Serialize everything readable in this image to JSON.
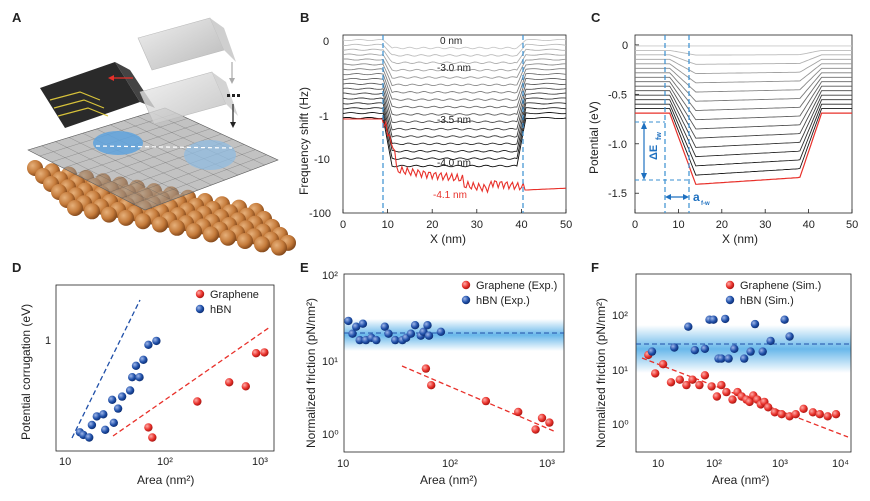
{
  "panel_labels": [
    "A",
    "B",
    "C",
    "D",
    "E",
    "F"
  ],
  "annotations": {
    "delta_e_main": "ΔE",
    "delta_e_sub": "fw",
    "a_main": "a",
    "a_sub": "f-w"
  },
  "colors": {
    "red": "#e8302a",
    "blue": "#1f4fa8",
    "cyan_dash": "#3a8fd0",
    "band": "#58b0e8"
  },
  "chart_data": [
    {
      "panel": "B",
      "type": "line",
      "xlabel": "X (nm)",
      "ylabel": "Frequency shift (Hz)",
      "xlim": [
        0,
        50
      ],
      "x_ticks": [
        "0",
        "10",
        "20",
        "30",
        "40",
        "50"
      ],
      "y_ticks": [
        "0",
        "-1",
        "-10",
        "-100"
      ],
      "curve_labels": [
        "0 nm",
        "-3.0 nm",
        "-3.5 nm",
        "-4.0 nm",
        "-4.1 nm"
      ],
      "vertical_lines_x": [
        9,
        41
      ]
    },
    {
      "panel": "C",
      "type": "line",
      "xlabel": "X (nm)",
      "ylabel": "Potential (eV)",
      "xlim": [
        0,
        50
      ],
      "ylim": [
        -1.7,
        0.1
      ],
      "x_ticks": [
        "0",
        "10",
        "20",
        "30",
        "40",
        "50"
      ],
      "y_ticks": [
        "0",
        "-0.5",
        "-1.0",
        "-1.5"
      ],
      "vertical_lines_x": [
        7,
        13
      ]
    },
    {
      "panel": "D",
      "type": "scatter",
      "xlabel": "Area (nm²)",
      "ylabel": "Potential corrugation (eV)",
      "x_ticks": [
        "10",
        "10²",
        "10³"
      ],
      "y_ticks": [
        "1"
      ],
      "series": [
        {
          "name": "Graphene",
          "x": [
            62,
            68,
            200,
            430,
            640,
            820,
            1000
          ],
          "y": [
            0.32,
            0.28,
            0.45,
            0.58,
            0.55,
            0.85,
            0.86
          ]
        },
        {
          "name": "hBN",
          "x": [
            12,
            13,
            15,
            16,
            18,
            21,
            22,
            26,
            27,
            30,
            33,
            40,
            42,
            46,
            50,
            55,
            62,
            75
          ],
          "y": [
            0.3,
            0.29,
            0.28,
            0.33,
            0.37,
            0.38,
            0.31,
            0.46,
            0.34,
            0.41,
            0.48,
            0.52,
            0.62,
            0.72,
            0.62,
            0.78,
            0.95,
            1.0
          ]
        }
      ]
    },
    {
      "panel": "E",
      "type": "scatter",
      "xlabel": "Area (nm²)",
      "ylabel": "Normalized friction (pN/nm²)",
      "x_ticks": [
        "10",
        "10²",
        "10³"
      ],
      "y_ticks": [
        "10⁰",
        "10¹",
        "10²"
      ],
      "series": [
        {
          "name": "Graphene (Exp.)",
          "x": [
            58,
            65,
            210,
            420,
            610,
            700,
            820
          ],
          "y": [
            6.6,
            4.1,
            2.6,
            1.9,
            1.15,
            1.6,
            1.4
          ]
        },
        {
          "name": "hBN (Exp.)",
          "x": [
            11,
            12,
            13,
            14,
            15,
            16,
            18,
            20,
            24,
            26,
            30,
            35,
            38,
            42,
            46,
            52,
            55,
            60,
            62,
            80
          ],
          "y": [
            26,
            18,
            22,
            15,
            24,
            15,
            16,
            15,
            22,
            18,
            15,
            15,
            16,
            18,
            23,
            17,
            19,
            23,
            17,
            19
          ]
        }
      ],
      "band_center": 18
    },
    {
      "panel": "F",
      "type": "scatter",
      "xlabel": "Area (nm²)",
      "ylabel": "Normalized friction (pN/nm²)",
      "x_ticks": [
        "10",
        "10²",
        "10³",
        "10⁴"
      ],
      "y_ticks": [
        "10⁰",
        "10¹",
        "10²"
      ],
      "series": [
        {
          "name": "Graphene (Sim.)",
          "x": [
            7,
            9,
            12,
            16,
            22,
            28,
            35,
            45,
            55,
            70,
            85,
            100,
            120,
            150,
            180,
            210,
            250,
            280,
            320,
            370,
            420,
            480,
            550,
            700,
            900,
            1200,
            1500,
            2000,
            2800,
            3600,
            4800,
            6500
          ],
          "y": [
            14,
            6.5,
            9.5,
            4.5,
            5.0,
            4.0,
            5.0,
            4.0,
            6.0,
            3.8,
            2.5,
            4.0,
            3.0,
            2.2,
            3.0,
            2.5,
            2.2,
            2.0,
            2.6,
            2.2,
            1.8,
            2.0,
            1.6,
            1.3,
            1.2,
            1.1,
            1.2,
            1.5,
            1.3,
            1.2,
            1.1,
            1.2
          ]
        },
        {
          "name": "hBN (Sim.)",
          "x": [
            8,
            18,
            30,
            38,
            55,
            65,
            75,
            90,
            100,
            115,
            130,
            160,
            230,
            290,
            340,
            450,
            600,
            1000,
            1200
          ],
          "y": [
            16,
            19,
            45,
            17,
            18,
            60,
            60,
            12,
            12,
            62,
            12,
            18,
            12,
            16,
            50,
            16,
            25,
            60,
            30
          ]
        }
      ],
      "band_center": 27
    }
  ]
}
